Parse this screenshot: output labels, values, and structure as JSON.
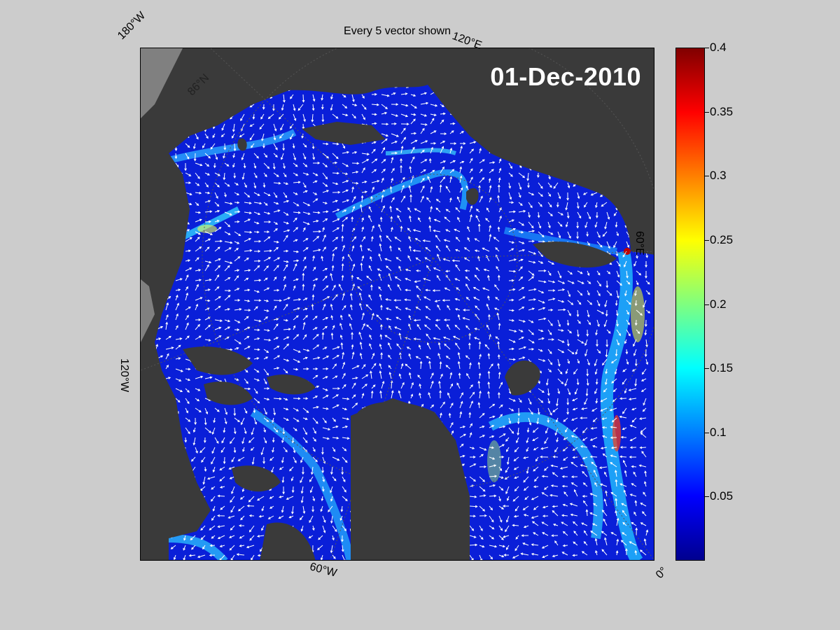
{
  "figure": {
    "title": "Every 5 vector shown",
    "date": "01-Dec-2010"
  },
  "map": {
    "longitude_labels": [
      {
        "text": "180°W"
      },
      {
        "text": "120°E"
      },
      {
        "text": "60°E"
      },
      {
        "text": "0°"
      },
      {
        "text": "60°W"
      },
      {
        "text": "120°W"
      }
    ],
    "latitude_labels": [
      {
        "text": "86°N"
      }
    ],
    "colors": {
      "ocean_low": "#0a1fd8",
      "land": "#3a3a3a",
      "outside": "#808080",
      "vectors": "#ffffff"
    },
    "vector_stride": 5
  },
  "colorbar": {
    "colormap": "jet",
    "min": 0,
    "max": 0.4,
    "ticks": [
      "0.05",
      "0.1",
      "0.15",
      "0.2",
      "0.25",
      "0.3",
      "0.35",
      "0.4"
    ],
    "tick_values": [
      0.05,
      0.1,
      0.15,
      0.2,
      0.25,
      0.3,
      0.35,
      0.4
    ]
  }
}
